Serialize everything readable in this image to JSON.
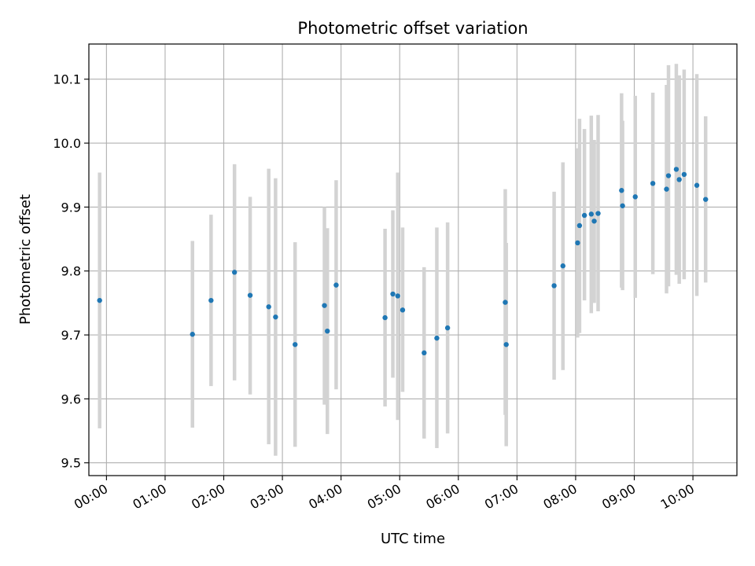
{
  "chart_data": {
    "type": "scatter",
    "title": "Photometric offset variation",
    "xlabel": "UTC time",
    "ylabel": "Photometric offset",
    "x_unit": "UTC time (HH:MM)",
    "xlim": [
      "-00:18",
      "10:45"
    ],
    "ylim": [
      9.48,
      10.155
    ],
    "x_ticks": [
      "00:00",
      "01:00",
      "02:00",
      "03:00",
      "04:00",
      "05:00",
      "06:00",
      "07:00",
      "08:00",
      "09:00",
      "10:00"
    ],
    "y_ticks": [
      "9.5",
      "9.6",
      "9.7",
      "9.8",
      "9.9",
      "10.0",
      "10.1"
    ],
    "grid": true,
    "point_color": "#1f77b4",
    "errorbar_color": "#d3d3d3",
    "points": [
      {
        "x": "23:53",
        "y": 9.754,
        "low": 9.554,
        "high": 9.954
      },
      {
        "x": "01:28",
        "y": 9.701,
        "low": 9.555,
        "high": 9.847
      },
      {
        "x": "01:47",
        "y": 9.754,
        "low": 9.62,
        "high": 9.888
      },
      {
        "x": "02:11",
        "y": 9.798,
        "low": 9.629,
        "high": 9.967
      },
      {
        "x": "02:27",
        "y": 9.762,
        "low": 9.607,
        "high": 9.916
      },
      {
        "x": "02:46",
        "y": 9.744,
        "low": 9.529,
        "high": 9.96
      },
      {
        "x": "02:53",
        "y": 9.728,
        "low": 9.511,
        "high": 9.945
      },
      {
        "x": "03:13",
        "y": 9.685,
        "low": 9.525,
        "high": 9.845
      },
      {
        "x": "03:43",
        "y": 9.746,
        "low": 9.591,
        "high": 9.9
      },
      {
        "x": "03:46",
        "y": 9.706,
        "low": 9.545,
        "high": 9.867
      },
      {
        "x": "03:55",
        "y": 9.778,
        "low": 9.615,
        "high": 9.942
      },
      {
        "x": "04:45",
        "y": 9.727,
        "low": 9.588,
        "high": 9.866
      },
      {
        "x": "04:53",
        "y": 9.764,
        "low": 9.633,
        "high": 9.895
      },
      {
        "x": "04:58",
        "y": 9.761,
        "low": 9.567,
        "high": 9.954
      },
      {
        "x": "05:03",
        "y": 9.739,
        "low": 9.611,
        "high": 9.868
      },
      {
        "x": "05:25",
        "y": 9.672,
        "low": 9.538,
        "high": 9.806
      },
      {
        "x": "05:38",
        "y": 9.695,
        "low": 9.523,
        "high": 9.868
      },
      {
        "x": "05:49",
        "y": 9.711,
        "low": 9.546,
        "high": 9.876
      },
      {
        "x": "06:48",
        "y": 9.751,
        "low": 9.575,
        "high": 9.928
      },
      {
        "x": "06:49",
        "y": 9.685,
        "low": 9.526,
        "high": 9.844
      },
      {
        "x": "07:38",
        "y": 9.777,
        "low": 9.63,
        "high": 9.924
      },
      {
        "x": "07:47",
        "y": 9.808,
        "low": 9.645,
        "high": 9.97
      },
      {
        "x": "08:02",
        "y": 9.844,
        "low": 9.696,
        "high": 9.992
      },
      {
        "x": "08:04",
        "y": 9.871,
        "low": 9.703,
        "high": 10.038
      },
      {
        "x": "08:09",
        "y": 9.887,
        "low": 9.754,
        "high": 10.022
      },
      {
        "x": "08:16",
        "y": 9.889,
        "low": 9.734,
        "high": 10.043
      },
      {
        "x": "08:19",
        "y": 9.878,
        "low": 9.75,
        "high": 10.005
      },
      {
        "x": "08:23",
        "y": 9.89,
        "low": 9.737,
        "high": 10.044
      },
      {
        "x": "08:47",
        "y": 9.926,
        "low": 9.774,
        "high": 10.078
      },
      {
        "x": "08:48",
        "y": 9.902,
        "low": 9.77,
        "high": 10.035
      },
      {
        "x": "09:01",
        "y": 9.916,
        "low": 9.758,
        "high": 10.074
      },
      {
        "x": "09:19",
        "y": 9.937,
        "low": 9.795,
        "high": 10.079
      },
      {
        "x": "09:33",
        "y": 9.928,
        "low": 9.765,
        "high": 10.091
      },
      {
        "x": "09:35",
        "y": 9.949,
        "low": 9.776,
        "high": 10.122
      },
      {
        "x": "09:43",
        "y": 9.959,
        "low": 9.794,
        "high": 10.124
      },
      {
        "x": "09:46",
        "y": 9.943,
        "low": 9.78,
        "high": 10.106
      },
      {
        "x": "09:51",
        "y": 9.951,
        "low": 9.787,
        "high": 10.115
      },
      {
        "x": "10:04",
        "y": 9.934,
        "low": 9.761,
        "high": 10.108
      },
      {
        "x": "10:13",
        "y": 9.912,
        "low": 9.782,
        "high": 10.042
      }
    ]
  }
}
